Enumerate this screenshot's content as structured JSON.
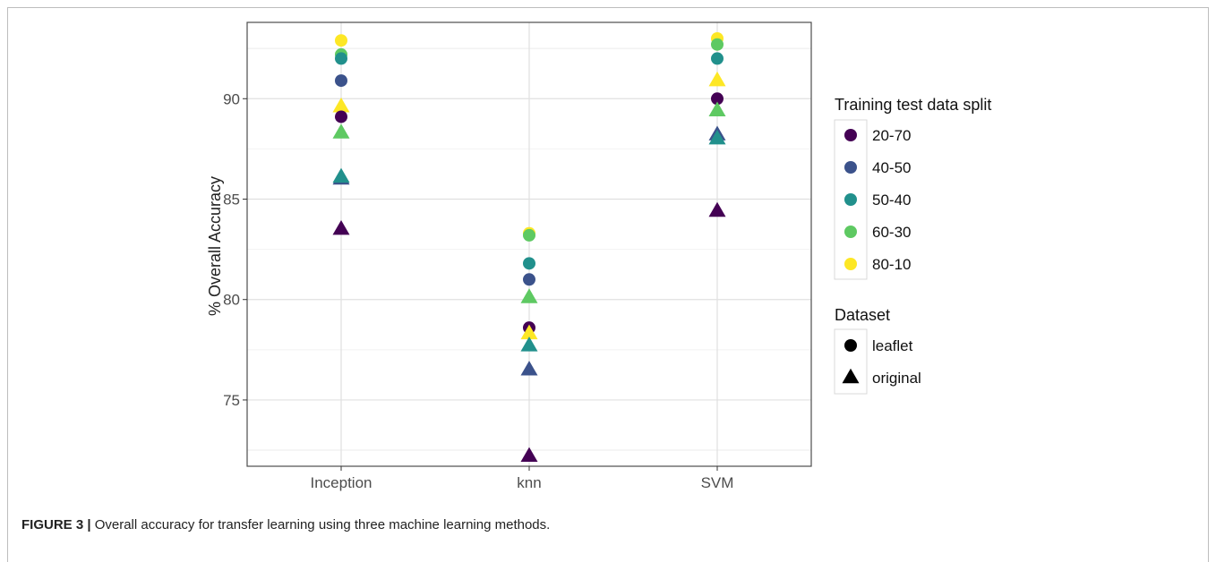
{
  "figure": {
    "caption_label": "FIGURE 3 |",
    "caption_text": " Overall accuracy for transfer learning using three machine learning methods."
  },
  "chart_data": {
    "type": "scatter",
    "categories": [
      "Inception",
      "knn",
      "SVM"
    ],
    "ylabel": "% Overall Accuracy",
    "xlabel": "",
    "ylim": [
      71.7,
      93.8
    ],
    "yticks": [
      75,
      80,
      85,
      90
    ],
    "grid": true,
    "legend_placement": "right",
    "color_legend": {
      "title": "Training test data split",
      "entries": [
        {
          "name": "20-70",
          "color": "#440154"
        },
        {
          "name": "40-50",
          "color": "#3b528b"
        },
        {
          "name": "50-40",
          "color": "#21908c"
        },
        {
          "name": "60-30",
          "color": "#5ec962"
        },
        {
          "name": "80-10",
          "color": "#fde725"
        }
      ]
    },
    "shape_legend": {
      "title": "Dataset",
      "entries": [
        {
          "name": "leaflet",
          "shape": "circle"
        },
        {
          "name": "original",
          "shape": "triangle"
        }
      ]
    },
    "points": [
      {
        "method": "Inception",
        "split": "80-10",
        "dataset": "leaflet",
        "y": 92.9
      },
      {
        "method": "Inception",
        "split": "60-30",
        "dataset": "leaflet",
        "y": 92.2
      },
      {
        "method": "Inception",
        "split": "50-40",
        "dataset": "leaflet",
        "y": 92.0
      },
      {
        "method": "Inception",
        "split": "40-50",
        "dataset": "leaflet",
        "y": 90.9
      },
      {
        "method": "Inception",
        "split": "80-10",
        "dataset": "original",
        "y": 89.6
      },
      {
        "method": "Inception",
        "split": "20-70",
        "dataset": "leaflet",
        "y": 89.1
      },
      {
        "method": "Inception",
        "split": "60-30",
        "dataset": "original",
        "y": 88.3
      },
      {
        "method": "Inception",
        "split": "40-50",
        "dataset": "original",
        "y": 86.0
      },
      {
        "method": "Inception",
        "split": "50-40",
        "dataset": "original",
        "y": 86.1
      },
      {
        "method": "Inception",
        "split": "20-70",
        "dataset": "original",
        "y": 83.5
      },
      {
        "method": "knn",
        "split": "80-10",
        "dataset": "leaflet",
        "y": 83.3
      },
      {
        "method": "knn",
        "split": "60-30",
        "dataset": "leaflet",
        "y": 83.2
      },
      {
        "method": "knn",
        "split": "50-40",
        "dataset": "leaflet",
        "y": 81.8
      },
      {
        "method": "knn",
        "split": "40-50",
        "dataset": "leaflet",
        "y": 81.0
      },
      {
        "method": "knn",
        "split": "60-30",
        "dataset": "original",
        "y": 80.1
      },
      {
        "method": "knn",
        "split": "20-70",
        "dataset": "leaflet",
        "y": 78.6
      },
      {
        "method": "knn",
        "split": "80-10",
        "dataset": "original",
        "y": 78.3
      },
      {
        "method": "knn",
        "split": "50-40",
        "dataset": "original",
        "y": 77.7
      },
      {
        "method": "knn",
        "split": "40-50",
        "dataset": "original",
        "y": 76.5
      },
      {
        "method": "knn",
        "split": "20-70",
        "dataset": "original",
        "y": 72.2
      },
      {
        "method": "SVM",
        "split": "80-10",
        "dataset": "leaflet",
        "y": 93.0
      },
      {
        "method": "SVM",
        "split": "60-30",
        "dataset": "leaflet",
        "y": 92.7
      },
      {
        "method": "SVM",
        "split": "50-40",
        "dataset": "leaflet",
        "y": 92.0
      },
      {
        "method": "SVM",
        "split": "80-10",
        "dataset": "original",
        "y": 90.9
      },
      {
        "method": "SVM",
        "split": "20-70",
        "dataset": "leaflet",
        "y": 90.0
      },
      {
        "method": "SVM",
        "split": "60-30",
        "dataset": "original",
        "y": 89.4
      },
      {
        "method": "SVM",
        "split": "40-50",
        "dataset": "original",
        "y": 88.2
      },
      {
        "method": "SVM",
        "split": "50-40",
        "dataset": "original",
        "y": 88.0
      },
      {
        "method": "SVM",
        "split": "20-70",
        "dataset": "original",
        "y": 84.4
      }
    ]
  }
}
